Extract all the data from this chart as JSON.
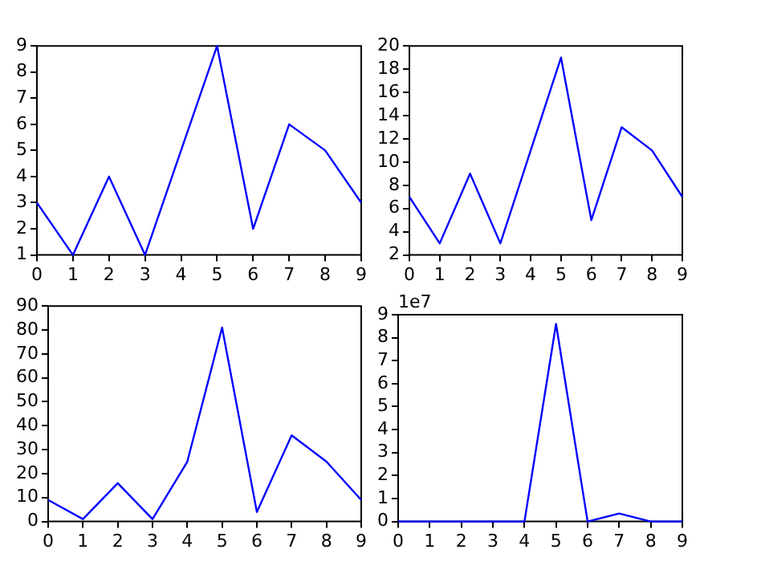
{
  "chart_data": [
    {
      "type": "line",
      "x": [
        0,
        1,
        2,
        3,
        4,
        5,
        6,
        7,
        8,
        9
      ],
      "series": [
        {
          "color": "#0000ff",
          "values": [
            3,
            1,
            4,
            1,
            5,
            9,
            2,
            6,
            5,
            3
          ]
        }
      ],
      "xlim": [
        0,
        9
      ],
      "xticks": [
        0,
        1,
        2,
        3,
        4,
        5,
        6,
        7,
        8,
        9
      ],
      "ylim": [
        1,
        9
      ],
      "yticks": [
        1,
        2,
        3,
        4,
        5,
        6,
        7,
        8,
        9
      ],
      "grid": false,
      "legend": false,
      "marker": "none",
      "line_style": "solid"
    },
    {
      "type": "line",
      "x": [
        0,
        1,
        2,
        3,
        4,
        5,
        6,
        7,
        8,
        9
      ],
      "series": [
        {
          "color": "#0000ff",
          "values": [
            7,
            3,
            9,
            3,
            11,
            19,
            5,
            13,
            11,
            7
          ]
        }
      ],
      "xlim": [
        0,
        9
      ],
      "xticks": [
        0,
        1,
        2,
        3,
        4,
        5,
        6,
        7,
        8,
        9
      ],
      "ylim": [
        2,
        20
      ],
      "yticks": [
        2,
        4,
        6,
        8,
        10,
        12,
        14,
        16,
        18,
        20
      ],
      "grid": false,
      "legend": false,
      "marker": "none",
      "line_style": "solid"
    },
    {
      "type": "line",
      "x": [
        0,
        1,
        2,
        3,
        4,
        5,
        6,
        7,
        8,
        9
      ],
      "series": [
        {
          "color": "#0000ff",
          "values": [
            9,
            1,
            16,
            1,
            25,
            81,
            4,
            36,
            25,
            9
          ]
        }
      ],
      "xlim": [
        0,
        9
      ],
      "xticks": [
        0,
        1,
        2,
        3,
        4,
        5,
        6,
        7,
        8,
        9
      ],
      "ylim": [
        0,
        90
      ],
      "yticks": [
        0,
        10,
        20,
        30,
        40,
        50,
        60,
        70,
        80,
        90
      ],
      "grid": false,
      "legend": false,
      "marker": "none",
      "line_style": "solid"
    },
    {
      "type": "line",
      "x": [
        0,
        1,
        2,
        3,
        4,
        5,
        6,
        7,
        8,
        9
      ],
      "series": [
        {
          "color": "#0000ff",
          "values": [
            0,
            0,
            0,
            0,
            0,
            8.6,
            0,
            0.35,
            0,
            0
          ]
        }
      ],
      "xlim": [
        0,
        9
      ],
      "xticks": [
        0,
        1,
        2,
        3,
        4,
        5,
        6,
        7,
        8,
        9
      ],
      "ylim": [
        0,
        9
      ],
      "yticks": [
        0,
        1,
        2,
        3,
        4,
        5,
        6,
        7,
        8,
        9
      ],
      "grid": false,
      "legend": false,
      "marker": "none",
      "line_style": "solid",
      "annotations": [
        "1e7"
      ]
    }
  ]
}
